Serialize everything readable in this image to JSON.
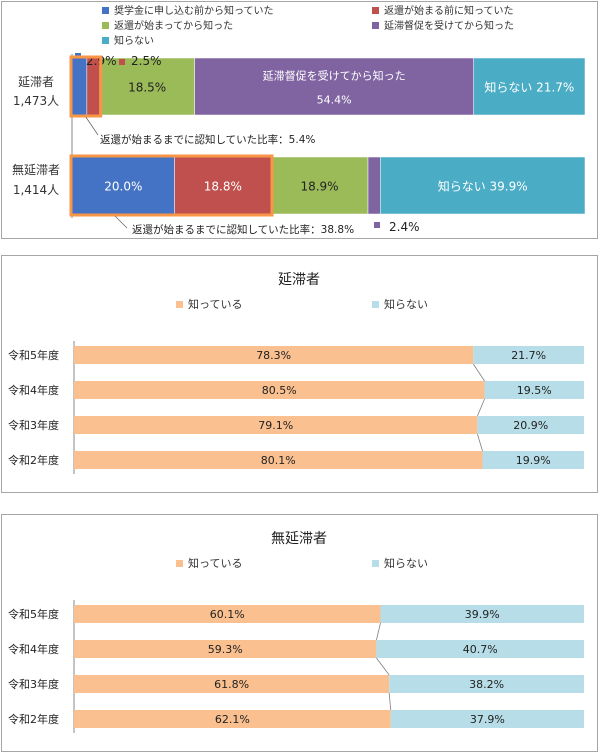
{
  "colors": {
    "blue": "#4472c4",
    "red": "#c0504d",
    "green": "#9bbb59",
    "purple": "#8064a2",
    "teal": "#4bacc6",
    "orange_highlight": "#f79646",
    "know": "#fac090",
    "dontknow": "#b7dee8"
  },
  "chart_data": [
    {
      "type": "bar",
      "orientation": "horizontal",
      "stacked": true,
      "legend": "top",
      "legend_items": [
        "奨学金に申し込む前から知っていた",
        "返還が始まる前に知っていた",
        "返還が始まってから知った",
        "延滞督促を受けてから知った",
        "知らない"
      ],
      "categories": [
        {
          "name": "延滞者",
          "count": "1,473人"
        },
        {
          "name": "無延滞者",
          "count": "1,414人"
        }
      ],
      "series": [
        {
          "name": "奨学金に申し込む前から知っていた",
          "color": "#4472c4",
          "values": [
            2.9,
            20.0
          ],
          "labels": [
            "2.9%",
            "20.0%"
          ]
        },
        {
          "name": "返還が始まる前に知っていた",
          "color": "#c0504d",
          "values": [
            2.5,
            18.8
          ],
          "labels": [
            "2.5%",
            "18.8%"
          ]
        },
        {
          "name": "返還が始まってから知った",
          "color": "#9bbb59",
          "values": [
            18.5,
            18.9
          ],
          "labels": [
            "18.5%",
            "18.9%"
          ]
        },
        {
          "name": "延滞督促を受けてから知った",
          "color": "#8064a2",
          "values": [
            54.4,
            2.4
          ],
          "labels": [
            "延滞督促を受けてから知った",
            "2.4%"
          ],
          "sublabels": [
            "54.4%",
            ""
          ]
        },
        {
          "name": "知らない",
          "color": "#4bacc6",
          "values": [
            21.7,
            39.9
          ],
          "labels": [
            "知らない 21.7%",
            "知らない 39.9%"
          ]
        }
      ],
      "annotations": [
        "返還が始まるまでに認知していた比率：5.4%",
        "返還が始まるまでに認知していた比率：38.8%"
      ]
    },
    {
      "type": "bar",
      "orientation": "horizontal",
      "stacked": true,
      "title": "延滞者",
      "legend": "top",
      "categories": [
        "令和5年度",
        "令和4年度",
        "令和3年度",
        "令和2年度"
      ],
      "series": [
        {
          "name": "知っている",
          "color": "#fac090",
          "values": [
            78.3,
            80.5,
            79.1,
            80.1
          ],
          "labels": [
            "78.3%",
            "80.5%",
            "79.1%",
            "80.1%"
          ]
        },
        {
          "name": "知らない",
          "color": "#b7dee8",
          "values": [
            21.7,
            19.5,
            20.9,
            19.9
          ],
          "labels": [
            "21.7%",
            "19.5%",
            "20.9%",
            "19.9%"
          ]
        }
      ]
    },
    {
      "type": "bar",
      "orientation": "horizontal",
      "stacked": true,
      "title": "無延滞者",
      "legend": "top",
      "categories": [
        "令和5年度",
        "令和4年度",
        "令和3年度",
        "令和2年度"
      ],
      "series": [
        {
          "name": "知っている",
          "color": "#fac090",
          "values": [
            60.1,
            59.3,
            61.8,
            62.1
          ],
          "labels": [
            "60.1%",
            "59.3%",
            "61.8%",
            "62.1%"
          ]
        },
        {
          "name": "知らない",
          "color": "#b7dee8",
          "values": [
            39.9,
            40.7,
            38.2,
            37.9
          ],
          "labels": [
            "39.9%",
            "40.7%",
            "38.2%",
            "37.9%"
          ]
        }
      ]
    }
  ]
}
